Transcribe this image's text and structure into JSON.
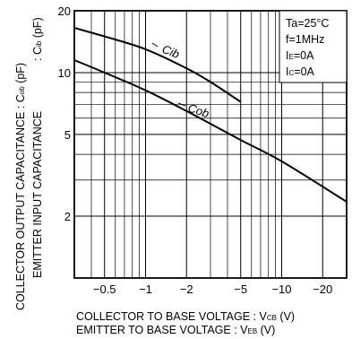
{
  "chart_data": {
    "type": "line",
    "x_scale": "log-reversed",
    "y_scale": "log",
    "xlim": [
      -0.3,
      -30
    ],
    "ylim": [
      1,
      20
    ],
    "x_ticks": [
      {
        "value": -0.5,
        "label": "−0.5"
      },
      {
        "value": -1,
        "label": "−1"
      },
      {
        "value": -2,
        "label": "−2"
      },
      {
        "value": -5,
        "label": "−5"
      },
      {
        "value": -10,
        "label": "−10"
      },
      {
        "value": -20,
        "label": "−20"
      }
    ],
    "y_ticks": [
      {
        "value": 2,
        "label": "2"
      },
      {
        "value": 5,
        "label": "5"
      },
      {
        "value": 10,
        "label": "10"
      },
      {
        "value": 20,
        "label": "20"
      }
    ],
    "grid": true,
    "ylabel_line1": {
      "main": "COLLECTOR OUTPUT CAPACITANCE : C",
      "sub": "ob",
      "unit": " (pF)"
    },
    "ylabel_line2": {
      "main": ": C",
      "sub": "ib",
      "unit": " (pF)"
    },
    "ylabel_line3": "EMITTER INPUT CAPACITANCE",
    "xlabel_line1": {
      "main": "COLLECTOR TO BASE VOLTAGE : V",
      "sub": "CB",
      "unit": " (V)"
    },
    "xlabel_line2": {
      "main": "EMITTER TO BASE VOLTAGE : V",
      "sub": "EB",
      "unit": " (V)"
    },
    "conditions": [
      {
        "main": "Ta=25°C",
        "sub": ""
      },
      {
        "main": "f=1MHz",
        "sub": ""
      },
      {
        "main": "I",
        "sub": "E",
        "rest": "=0A"
      },
      {
        "main": "I",
        "sub": "C",
        "rest": "=0A"
      }
    ],
    "series": [
      {
        "name": "Cib",
        "x": [
          -0.3,
          -0.5,
          -1,
          -2,
          -3,
          -5
        ],
        "y": [
          16.5,
          15,
          13,
          10.5,
          9,
          7.2
        ]
      },
      {
        "name": "Cob",
        "x": [
          -0.3,
          -0.5,
          -1,
          -2,
          -5,
          -10,
          -30
        ],
        "y": [
          11.5,
          10,
          8.2,
          6.5,
          4.7,
          3.7,
          2.35
        ]
      }
    ]
  }
}
